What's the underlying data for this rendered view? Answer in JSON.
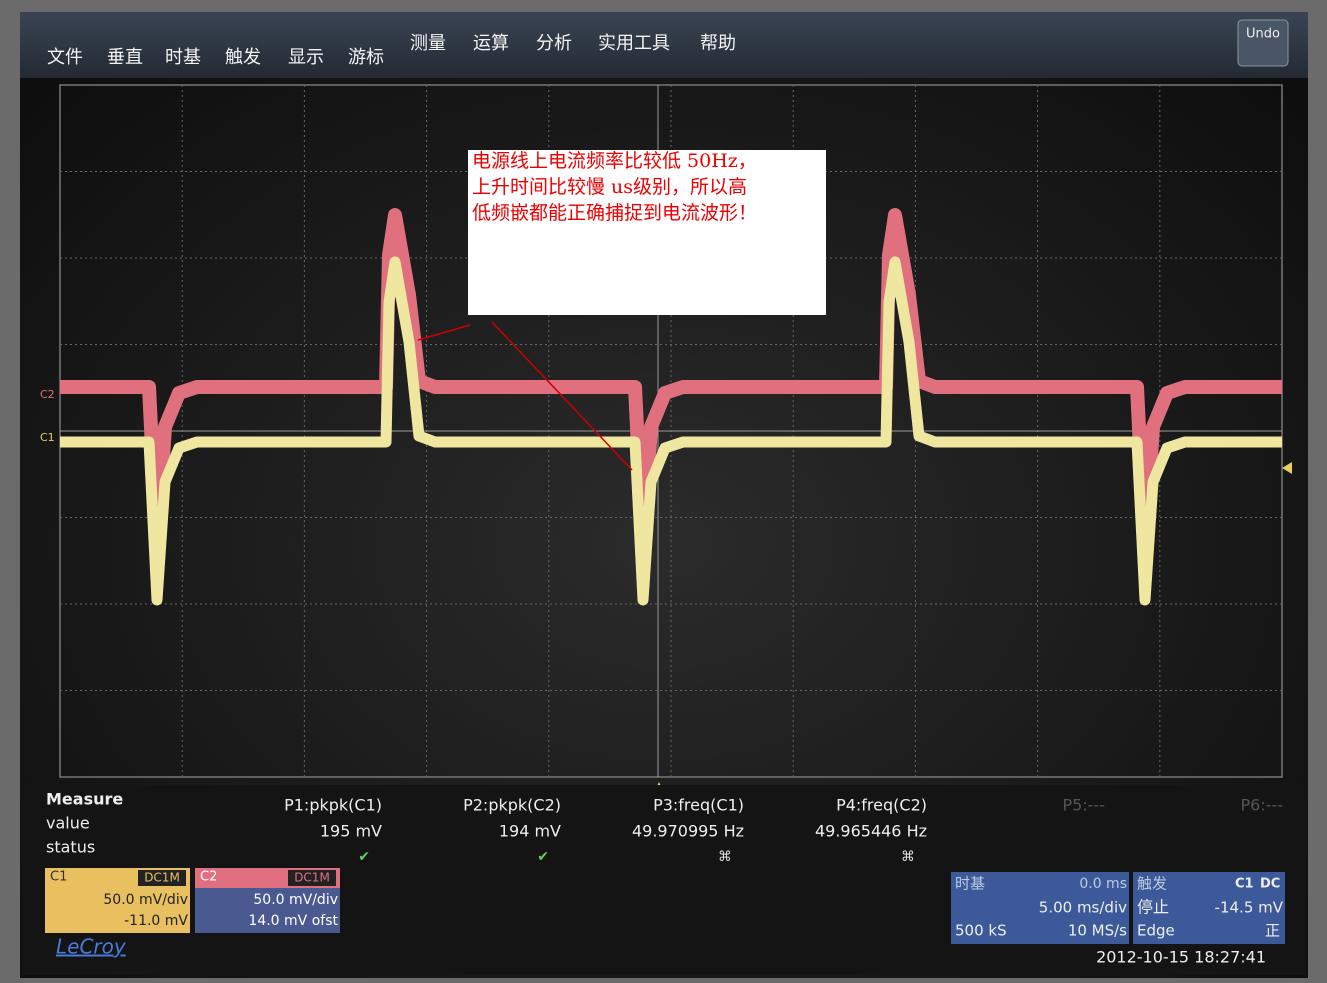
{
  "menu": {
    "items": [
      "文件",
      "垂直",
      "时基",
      "触发",
      "显示",
      "游标",
      "测量",
      "运算",
      "分析",
      "实用工具",
      "帮助"
    ],
    "undo": "Undo"
  },
  "annotation": {
    "lines": [
      "电源线上电流频率比较低 50Hz，",
      "上升时间比较慢 us级别，所以高",
      "低频嵌都能正确捕捉到电流波形！"
    ]
  },
  "channel_markers": [
    "C2",
    "C1"
  ],
  "measure": {
    "title": "Measure",
    "row_labels": [
      "value",
      "status"
    ],
    "params": [
      {
        "name": "P1:pkpk(C1)",
        "value": "195 mV"
      },
      {
        "name": "P2:pkpk(C2)",
        "value": "194 mV"
      },
      {
        "name": "P3:freq(C1)",
        "value": "49.970995 Hz"
      },
      {
        "name": "P4:freq(C2)",
        "value": "49.965446 Hz"
      },
      {
        "name": "P5:---"
      },
      {
        "name": "P6:---"
      }
    ]
  },
  "channels": [
    {
      "name": "C1",
      "coupling": "DC1M",
      "scale": "50.0 mV/div",
      "offset": "-11.0 mV"
    },
    {
      "name": "C2",
      "coupling": "DC1M",
      "scale": "50.0 mV/div",
      "offset": "14.0 mV ofst"
    }
  ],
  "timebase": {
    "label": "时基",
    "delay": "0.0 ms",
    "scale": "5.00 ms/div",
    "samples": "500 kS",
    "rate": "10 MS/s"
  },
  "trigger": {
    "label": "触发",
    "source": "C1",
    "coupling": "DC",
    "state": "停止",
    "level": "-14.5 mV",
    "type": "Edge",
    "slope": "正"
  },
  "brand": "LeCroy",
  "timestamp": "2012-10-15 18:27:41"
}
